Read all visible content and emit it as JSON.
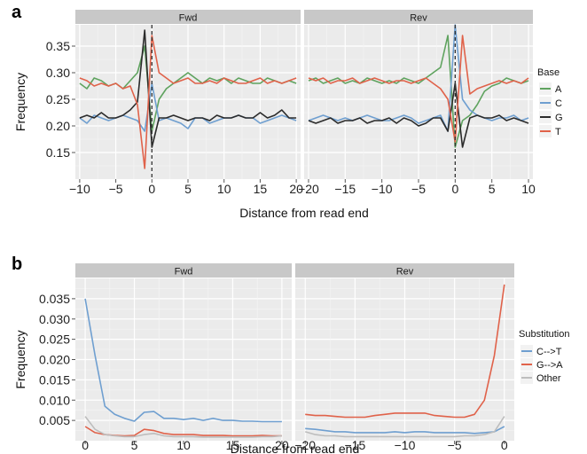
{
  "colors": {
    "A": "#5fa35f",
    "C": "#6f9fd0",
    "G": "#2b2b2b",
    "T": "#e0624a",
    "C->T": "#6f9fd0",
    "G->A": "#e0624a",
    "Other": "#bdbdbd",
    "panel_bg": "#ebebeb",
    "strip_bg": "#c8c8c8",
    "grid": "#ffffff"
  },
  "chart_data": [
    {
      "type": "line",
      "panel_label": "a",
      "xlabel": "Distance from read end",
      "ylabel": "Frequency",
      "legend_title": "Base",
      "legend_position": "right",
      "legend": [
        "A",
        "C",
        "G",
        "T"
      ],
      "grid": true,
      "ylim": [
        0.1,
        0.39
      ],
      "yticks": [
        "0.35",
        "0.30",
        "0.25",
        "0.20",
        "0.15"
      ],
      "facets": [
        {
          "label": "Fwd",
          "xlim": [
            -10.6,
            20.6
          ],
          "xticks": [
            "-10",
            "-5",
            "0",
            "5",
            "10",
            "15",
            "20"
          ],
          "vline": 0,
          "x": [
            -10,
            -9,
            -8,
            -7,
            -6,
            -5,
            -4,
            -3,
            -2,
            -1,
            0,
            1,
            2,
            3,
            4,
            5,
            6,
            7,
            8,
            9,
            10,
            11,
            12,
            13,
            14,
            15,
            16,
            17,
            18,
            19,
            20
          ],
          "series": [
            {
              "name": "A",
              "values": [
                0.28,
                0.27,
                0.29,
                0.285,
                0.275,
                0.28,
                0.27,
                0.285,
                0.3,
                0.35,
                0.19,
                0.25,
                0.27,
                0.28,
                0.29,
                0.3,
                0.29,
                0.28,
                0.29,
                0.285,
                0.29,
                0.28,
                0.29,
                0.285,
                0.28,
                0.28,
                0.29,
                0.285,
                0.28,
                0.285,
                0.28
              ]
            },
            {
              "name": "C",
              "values": [
                0.215,
                0.205,
                0.22,
                0.215,
                0.21,
                0.215,
                0.22,
                0.215,
                0.21,
                0.19,
                0.28,
                0.21,
                0.215,
                0.21,
                0.205,
                0.195,
                0.215,
                0.215,
                0.205,
                0.21,
                0.215,
                0.215,
                0.22,
                0.215,
                0.215,
                0.205,
                0.21,
                0.215,
                0.22,
                0.215,
                0.21
              ]
            },
            {
              "name": "G",
              "values": [
                0.215,
                0.22,
                0.215,
                0.225,
                0.215,
                0.215,
                0.22,
                0.23,
                0.245,
                0.38,
                0.16,
                0.215,
                0.215,
                0.22,
                0.215,
                0.21,
                0.215,
                0.215,
                0.21,
                0.22,
                0.215,
                0.215,
                0.22,
                0.215,
                0.215,
                0.225,
                0.215,
                0.22,
                0.23,
                0.215,
                0.215
              ]
            },
            {
              "name": "T",
              "values": [
                0.29,
                0.285,
                0.275,
                0.28,
                0.275,
                0.28,
                0.27,
                0.275,
                0.24,
                0.12,
                0.37,
                0.3,
                0.29,
                0.28,
                0.285,
                0.29,
                0.28,
                0.28,
                0.285,
                0.28,
                0.29,
                0.285,
                0.28,
                0.28,
                0.285,
                0.29,
                0.28,
                0.285,
                0.28,
                0.285,
                0.29
              ]
            }
          ]
        },
        {
          "label": "Rev",
          "xlim": [
            -20.6,
            10.6
          ],
          "xticks": [
            "-20",
            "-15",
            "-10",
            "-5",
            "0",
            "5",
            "10"
          ],
          "vline": 0,
          "x": [
            -20,
            -19,
            -18,
            -17,
            -16,
            -15,
            -14,
            -13,
            -12,
            -11,
            -10,
            -9,
            -8,
            -7,
            -6,
            -5,
            -4,
            -3,
            -2,
            -1,
            0,
            1,
            2,
            3,
            4,
            5,
            6,
            7,
            8,
            9,
            10
          ],
          "series": [
            {
              "name": "A",
              "values": [
                0.285,
                0.29,
                0.28,
                0.285,
                0.29,
                0.28,
                0.285,
                0.28,
                0.29,
                0.285,
                0.28,
                0.285,
                0.28,
                0.29,
                0.285,
                0.28,
                0.29,
                0.3,
                0.31,
                0.37,
                0.16,
                0.21,
                0.22,
                0.24,
                0.265,
                0.275,
                0.28,
                0.29,
                0.285,
                0.28,
                0.285
              ]
            },
            {
              "name": "C",
              "values": [
                0.21,
                0.215,
                0.22,
                0.215,
                0.21,
                0.215,
                0.21,
                0.215,
                0.22,
                0.215,
                0.21,
                0.21,
                0.215,
                0.22,
                0.215,
                0.205,
                0.21,
                0.215,
                0.22,
                0.19,
                0.39,
                0.25,
                0.23,
                0.22,
                0.215,
                0.21,
                0.215,
                0.215,
                0.22,
                0.21,
                0.215
              ]
            },
            {
              "name": "G",
              "values": [
                0.21,
                0.205,
                0.21,
                0.215,
                0.205,
                0.21,
                0.21,
                0.215,
                0.205,
                0.21,
                0.21,
                0.215,
                0.205,
                0.215,
                0.21,
                0.2,
                0.205,
                0.215,
                0.215,
                0.19,
                0.28,
                0.16,
                0.215,
                0.22,
                0.215,
                0.215,
                0.22,
                0.21,
                0.215,
                0.21,
                0.205
              ]
            },
            {
              "name": "T",
              "values": [
                0.29,
                0.285,
                0.29,
                0.28,
                0.285,
                0.285,
                0.29,
                0.28,
                0.285,
                0.29,
                0.285,
                0.28,
                0.285,
                0.285,
                0.28,
                0.285,
                0.29,
                0.28,
                0.27,
                0.25,
                0.17,
                0.37,
                0.26,
                0.27,
                0.275,
                0.28,
                0.285,
                0.28,
                0.285,
                0.28,
                0.29
              ]
            }
          ]
        }
      ]
    },
    {
      "type": "line",
      "panel_label": "b",
      "xlabel": "Distance from read end",
      "ylabel": "Frequency",
      "legend_title": "Substitution",
      "legend_position": "right",
      "legend": [
        "C-->T",
        "G-->A",
        "Other"
      ],
      "grid": true,
      "ylim": [
        0,
        0.04
      ],
      "yticks": [
        "0.035",
        "0.030",
        "0.025",
        "0.020",
        "0.015",
        "0.010",
        "0.005"
      ],
      "facets": [
        {
          "label": "Fwd",
          "xlim": [
            -1,
            21
          ],
          "xticks": [
            "0",
            "5",
            "10",
            "15",
            "20"
          ],
          "x": [
            0,
            1,
            2,
            3,
            4,
            5,
            6,
            7,
            8,
            9,
            10,
            11,
            12,
            13,
            14,
            15,
            16,
            17,
            18,
            19,
            20
          ],
          "series": [
            {
              "name": "C->T",
              "values": [
                0.035,
                0.021,
                0.0085,
                0.0065,
                0.0055,
                0.0048,
                0.007,
                0.0072,
                0.0055,
                0.0055,
                0.0052,
                0.0055,
                0.005,
                0.0055,
                0.005,
                0.005,
                0.0048,
                0.0048,
                0.0047,
                0.0047,
                0.0047
              ]
            },
            {
              "name": "G->A",
              "values": [
                0.0035,
                0.002,
                0.0015,
                0.0013,
                0.0012,
                0.0013,
                0.0028,
                0.0025,
                0.0018,
                0.0015,
                0.0015,
                0.0015,
                0.0013,
                0.0013,
                0.0013,
                0.0012,
                0.0012,
                0.0012,
                0.0013,
                0.0012,
                0.0012
              ]
            },
            {
              "name": "Other",
              "values": [
                0.006,
                0.0028,
                0.0015,
                0.0012,
                0.001,
                0.001,
                0.0015,
                0.0018,
                0.0012,
                0.001,
                0.001,
                0.001,
                0.0009,
                0.0009,
                0.0009,
                0.0009,
                0.0009,
                0.0009,
                0.001,
                0.001,
                0.0012
              ]
            }
          ]
        },
        {
          "label": "Rev",
          "xlim": [
            -21,
            1
          ],
          "xticks": [
            "-20",
            "-15",
            "-10",
            "-5",
            "0"
          ],
          "x": [
            -20,
            -19,
            -18,
            -17,
            -16,
            -15,
            -14,
            -13,
            -12,
            -11,
            -10,
            -9,
            -8,
            -7,
            -6,
            -5,
            -4,
            -3,
            -2,
            -1,
            0
          ],
          "series": [
            {
              "name": "C->T",
              "values": [
                0.003,
                0.0028,
                0.0025,
                0.0022,
                0.0022,
                0.002,
                0.002,
                0.002,
                0.002,
                0.0022,
                0.002,
                0.0022,
                0.0022,
                0.002,
                0.002,
                0.002,
                0.002,
                0.0018,
                0.002,
                0.0022,
                0.0035
              ]
            },
            {
              "name": "G->A",
              "values": [
                0.0065,
                0.0062,
                0.0062,
                0.006,
                0.0058,
                0.0058,
                0.0058,
                0.0062,
                0.0065,
                0.0068,
                0.0068,
                0.0068,
                0.0068,
                0.0062,
                0.006,
                0.0058,
                0.0058,
                0.0065,
                0.01,
                0.021,
                0.0385
              ]
            },
            {
              "name": "Other",
              "values": [
                0.0022,
                0.0015,
                0.0012,
                0.0012,
                0.001,
                0.001,
                0.001,
                0.001,
                0.001,
                0.001,
                0.001,
                0.001,
                0.001,
                0.001,
                0.001,
                0.001,
                0.0012,
                0.0012,
                0.0015,
                0.0022,
                0.006
              ]
            }
          ]
        }
      ]
    }
  ]
}
